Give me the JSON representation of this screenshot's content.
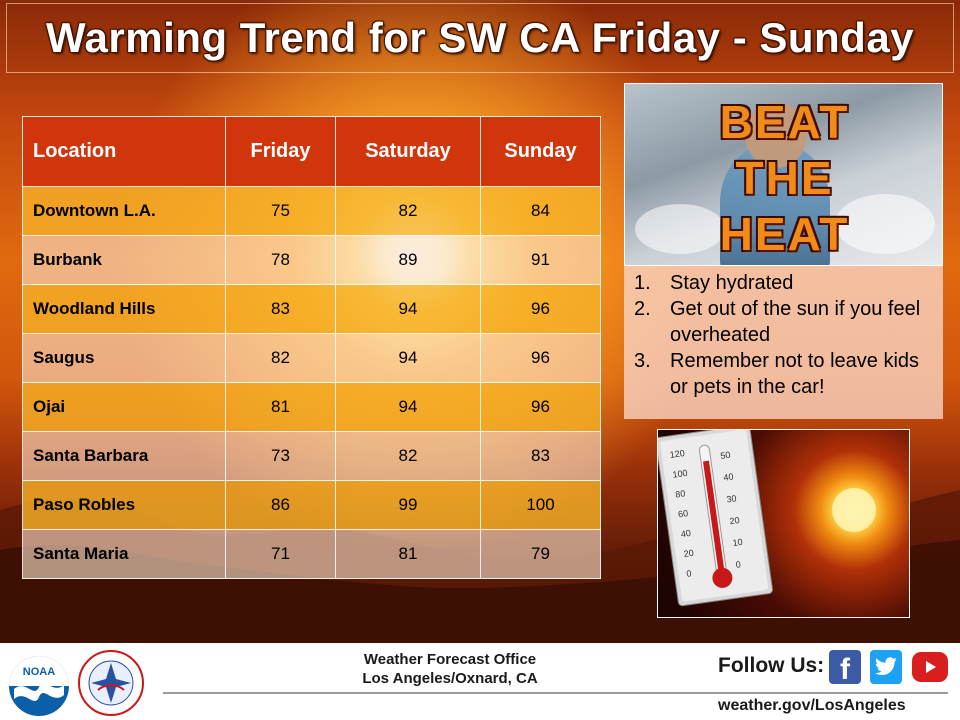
{
  "title": "Warming Trend for SW CA Friday - Sunday",
  "table": {
    "headers": [
      "Location",
      "Friday",
      "Saturday",
      "Sunday"
    ],
    "rows": [
      {
        "location": "Downtown  L.A.",
        "friday": "75",
        "saturday": "82",
        "sunday": "84"
      },
      {
        "location": "Burbank",
        "friday": "78",
        "saturday": "89",
        "sunday": "91"
      },
      {
        "location": "Woodland Hills",
        "friday": "83",
        "saturday": "94",
        "sunday": "96"
      },
      {
        "location": "Saugus",
        "friday": "82",
        "saturday": "94",
        "sunday": "96"
      },
      {
        "location": "Ojai",
        "friday": "81",
        "saturday": "94",
        "sunday": "96"
      },
      {
        "location": "Santa Barbara",
        "friday": "73",
        "saturday": "82",
        "sunday": "83"
      },
      {
        "location": "Paso Robles",
        "friday": "86",
        "saturday": "99",
        "sunday": "100"
      },
      {
        "location": "Santa Maria",
        "friday": "71",
        "saturday": "81",
        "sunday": "79"
      }
    ]
  },
  "beat_the_heat": {
    "line1": "BEAT",
    "line2": "THE",
    "line3": "HEAT"
  },
  "tips": [
    {
      "num": "1.",
      "text": "Stay hydrated"
    },
    {
      "num": "2.",
      "text": "Get out of the sun if you feel overheated"
    },
    {
      "num": "3.",
      "text": "Remember not to leave kids or pets in the car!"
    }
  ],
  "thermometer_scale": {
    "fahrenheit": [
      "120",
      "100",
      "80",
      "60",
      "40",
      "20",
      "0"
    ],
    "celsius": [
      "50",
      "40",
      "30",
      "20",
      "10",
      "0"
    ]
  },
  "footer": {
    "noaa_logo_text": "NOAA",
    "nws_logo_text": "NATIONAL WEATHER SERVICE",
    "office_line1": "Weather Forecast Office",
    "office_line2": "Los Angeles/Oxnard, CA",
    "follow_label": "Follow Us:",
    "website": "weather.gov/LosAngeles",
    "facebook_glyph": "f"
  },
  "icons": {
    "facebook": "facebook-icon",
    "twitter": "twitter-icon",
    "youtube": "youtube-icon"
  },
  "colors": {
    "header_red": "#d1350c",
    "row_orange": "#f6b228",
    "row_light": "#fae1c8",
    "beat_orange": "#f08a18"
  }
}
